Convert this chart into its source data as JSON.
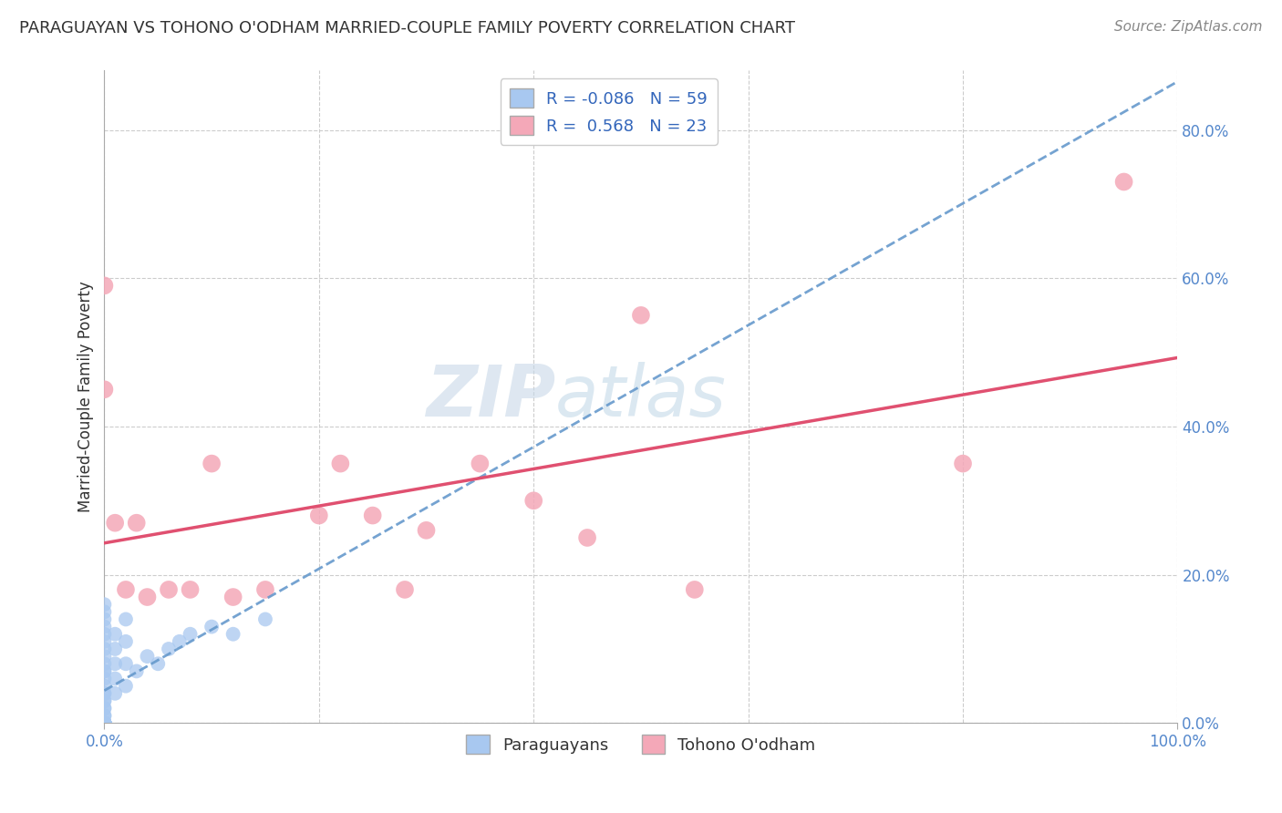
{
  "title": "PARAGUAYAN VS TOHONO O'ODHAM MARRIED-COUPLE FAMILY POVERTY CORRELATION CHART",
  "source": "Source: ZipAtlas.com",
  "ylabel": "Married-Couple Family Poverty",
  "r_paraguayan": -0.086,
  "n_paraguayan": 59,
  "r_tohono": 0.568,
  "n_tohono": 23,
  "background_color": "#ffffff",
  "watermark_zip": "ZIP",
  "watermark_atlas": "atlas",
  "legend_label_1": "Paraguayans",
  "legend_label_2": "Tohono O'odham",
  "paraguayan_color": "#a8c8f0",
  "tohono_color": "#f4a8b8",
  "paraguayan_line_color": "#6699cc",
  "tohono_line_color": "#e05070",
  "xlim": [
    0.0,
    1.0
  ],
  "ylim": [
    0.0,
    0.88
  ],
  "paraguayan_x": [
    0.0,
    0.0,
    0.0,
    0.0,
    0.0,
    0.0,
    0.0,
    0.0,
    0.0,
    0.0,
    0.0,
    0.0,
    0.0,
    0.0,
    0.0,
    0.0,
    0.0,
    0.0,
    0.0,
    0.0,
    0.0,
    0.0,
    0.0,
    0.0,
    0.0,
    0.0,
    0.0,
    0.0,
    0.0,
    0.0,
    0.0,
    0.0,
    0.0,
    0.0,
    0.0,
    0.0,
    0.0,
    0.0,
    0.0,
    0.0,
    0.0,
    0.01,
    0.01,
    0.01,
    0.01,
    0.01,
    0.02,
    0.02,
    0.02,
    0.02,
    0.03,
    0.04,
    0.05,
    0.06,
    0.07,
    0.08,
    0.1,
    0.12,
    0.15
  ],
  "paraguayan_y": [
    0.0,
    0.0,
    0.0,
    0.0,
    0.0,
    0.0,
    0.0,
    0.0,
    0.0,
    0.0,
    0.0,
    0.0,
    0.0,
    0.0,
    0.0,
    0.0,
    0.0,
    0.0,
    0.0,
    0.0,
    0.01,
    0.01,
    0.02,
    0.02,
    0.03,
    0.03,
    0.04,
    0.04,
    0.05,
    0.06,
    0.07,
    0.07,
    0.08,
    0.09,
    0.1,
    0.11,
    0.12,
    0.13,
    0.14,
    0.15,
    0.16,
    0.04,
    0.06,
    0.08,
    0.1,
    0.12,
    0.05,
    0.08,
    0.11,
    0.14,
    0.07,
    0.09,
    0.08,
    0.1,
    0.11,
    0.12,
    0.13,
    0.12,
    0.14
  ],
  "tohono_x": [
    0.0,
    0.0,
    0.01,
    0.02,
    0.03,
    0.04,
    0.06,
    0.08,
    0.1,
    0.12,
    0.15,
    0.2,
    0.22,
    0.25,
    0.28,
    0.3,
    0.35,
    0.4,
    0.45,
    0.5,
    0.55,
    0.8,
    0.95
  ],
  "tohono_y": [
    0.59,
    0.45,
    0.27,
    0.18,
    0.27,
    0.17,
    0.18,
    0.18,
    0.35,
    0.17,
    0.18,
    0.28,
    0.35,
    0.28,
    0.18,
    0.26,
    0.35,
    0.3,
    0.25,
    0.55,
    0.18,
    0.35,
    0.73
  ]
}
